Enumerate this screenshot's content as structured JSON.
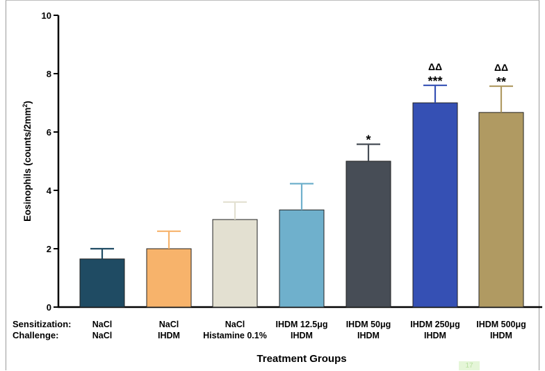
{
  "chart_data": {
    "type": "bar",
    "ylabel": "Eosinophils (counts/2mm",
    "ylabel_sup": "2",
    "ylabel_tail": ")",
    "xlabel": "Treatment Groups",
    "ylim": [
      0,
      10
    ],
    "yticks": [
      "0",
      "2",
      "4",
      "6",
      "8",
      "10"
    ],
    "row_labels": [
      "Sensitization:",
      "Challenge:"
    ],
    "categories": [
      {
        "sensitization": "NaCl",
        "challenge": "NaCl"
      },
      {
        "sensitization": "NaCl",
        "challenge": "IHDM"
      },
      {
        "sensitization": "NaCl",
        "challenge": "Histamine 0.1%"
      },
      {
        "sensitization": "IHDM 12.5μg",
        "challenge": "IHDM"
      },
      {
        "sensitization": "IHDM 50μg",
        "challenge": "IHDM"
      },
      {
        "sensitization": "IHDM 250μg",
        "challenge": "IHDM"
      },
      {
        "sensitization": "IHDM 500μg",
        "challenge": "IHDM"
      }
    ],
    "values": [
      1.65,
      2.0,
      3.0,
      3.33,
      5.0,
      7.0,
      6.67
    ],
    "errors": [
      0.35,
      0.6,
      0.6,
      0.9,
      0.58,
      0.6,
      0.9
    ],
    "colors": [
      "#1f4b63",
      "#f7b36b",
      "#e3e0d1",
      "#6fb0cc",
      "#474d56",
      "#3550b4",
      "#b09a62"
    ],
    "annotations": [
      {
        "index": 4,
        "lines": [
          "*"
        ]
      },
      {
        "index": 5,
        "lines": [
          "ΔΔ",
          "***"
        ]
      },
      {
        "index": 6,
        "lines": [
          "ΔΔ",
          "**"
        ]
      }
    ]
  },
  "watermark": "17"
}
